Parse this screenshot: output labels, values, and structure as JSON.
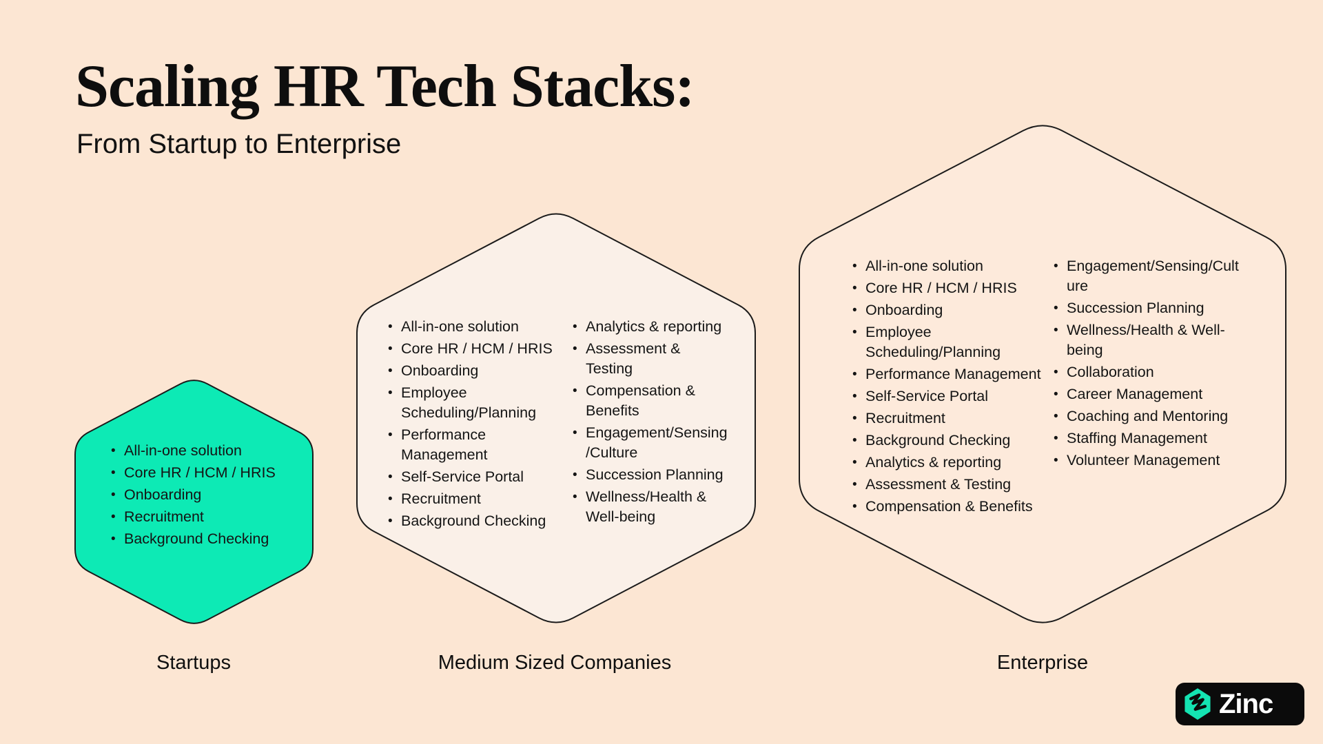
{
  "title": "Scaling HR Tech Stacks:",
  "subtitle": "From Startup to Enterprise",
  "colors": {
    "background": "#fce6d3",
    "startup_fill": "#0deab5",
    "medium_fill": "#faf0e8",
    "enterprise_fill": "#fdeadb",
    "outline": "#1b1b1b",
    "text": "#141414",
    "logo_background": "#0b0b0b",
    "logo_hex_green": "#14e3b2",
    "logo_text_color": "#ffffff"
  },
  "tiers": [
    {
      "label": "Startups",
      "columns": [
        [
          "All-in-one solution",
          "Core HR / HCM / HRIS",
          "Onboarding",
          "Recruitment",
          "Background Checking"
        ]
      ]
    },
    {
      "label": "Medium Sized Companies",
      "columns": [
        [
          "All-in-one solution",
          "Core HR / HCM / HRIS",
          "Onboarding",
          "Employee\nScheduling/Planning",
          "Performance\nManagement",
          "Self-Service Portal",
          "Recruitment",
          "Background Checking"
        ],
        [
          "Analytics & reporting",
          "Assessment &\nTesting",
          "Compensation &\nBenefits",
          "Engagement/Sensing\n/Culture",
          "Succession Planning",
          "Wellness/Health &\nWell-being"
        ]
      ]
    },
    {
      "label": "Enterprise",
      "columns": [
        [
          "All-in-one solution",
          "Core HR / HCM / HRIS",
          "Onboarding",
          "Employee\nScheduling/Planning",
          "Performance Management",
          "Self-Service Portal",
          "Recruitment",
          "Background Checking",
          "Analytics & reporting",
          "Assessment & Testing",
          "Compensation & Benefits"
        ],
        [
          "Engagement/Sensing/Cult\nure",
          "Succession Planning",
          "Wellness/Health & Well-\nbeing",
          "Collaboration",
          "Career Management",
          "Coaching and Mentoring",
          "Staffing Management",
          "Volunteer Management"
        ]
      ]
    }
  ],
  "logo": {
    "text": "Zinc",
    "icon": "zinc-zigzag-hexagon-icon"
  }
}
